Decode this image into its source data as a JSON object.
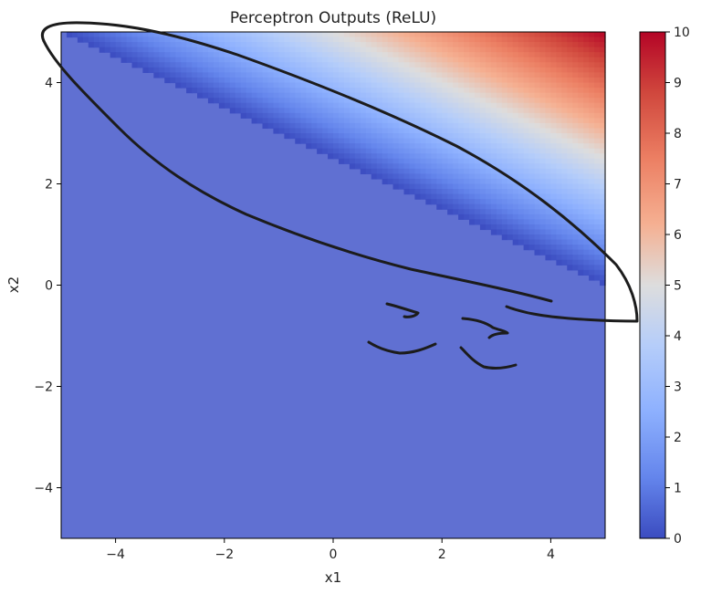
{
  "chart_data": {
    "type": "heatmap",
    "title": "Perceptron Outputs (ReLU)",
    "xlabel": "x1",
    "ylabel": "x2",
    "xlim": [
      -5,
      5
    ],
    "ylim": [
      -5,
      5
    ],
    "x_ticks": [
      {
        "value": -4,
        "label": "−4"
      },
      {
        "value": -2,
        "label": "−2"
      },
      {
        "value": 0,
        "label": "0"
      },
      {
        "value": 2,
        "label": "2"
      },
      {
        "value": 4,
        "label": "4"
      }
    ],
    "y_ticks": [
      {
        "value": -4,
        "label": "−4"
      },
      {
        "value": -2,
        "label": "−2"
      },
      {
        "value": 0,
        "label": "0"
      },
      {
        "value": 2,
        "label": "2"
      },
      {
        "value": 4,
        "label": "4"
      }
    ],
    "function": "ReLU of a linear combination of x1 and x2; zero below the line through (-5, 5) and (5, 0), rising to about 10 at (5, 5)",
    "corner_values": [
      {
        "x1": -5,
        "x2": -5,
        "value": 0
      },
      {
        "x1": 5,
        "x2": -5,
        "value": 0
      },
      {
        "x1": -5,
        "x2": 5,
        "value": 0
      },
      {
        "x1": 5,
        "x2": 5,
        "value": 10
      }
    ],
    "zero_line": {
      "from": [
        -5,
        5
      ],
      "to": [
        5,
        0
      ]
    },
    "colormap": "coolwarm",
    "colorbar": {
      "min": 0,
      "max": 10,
      "ticks": [
        "0",
        "1",
        "2",
        "3",
        "4",
        "5",
        "6",
        "7",
        "8",
        "9",
        "10"
      ]
    },
    "colors": {
      "low": "#3b4cc0",
      "mid": "#dddddd",
      "high": "#b40426",
      "zero_region": "#6070d2"
    },
    "annotation": "hand-drawn black ink loop around the upper band and illegible scribbles"
  }
}
